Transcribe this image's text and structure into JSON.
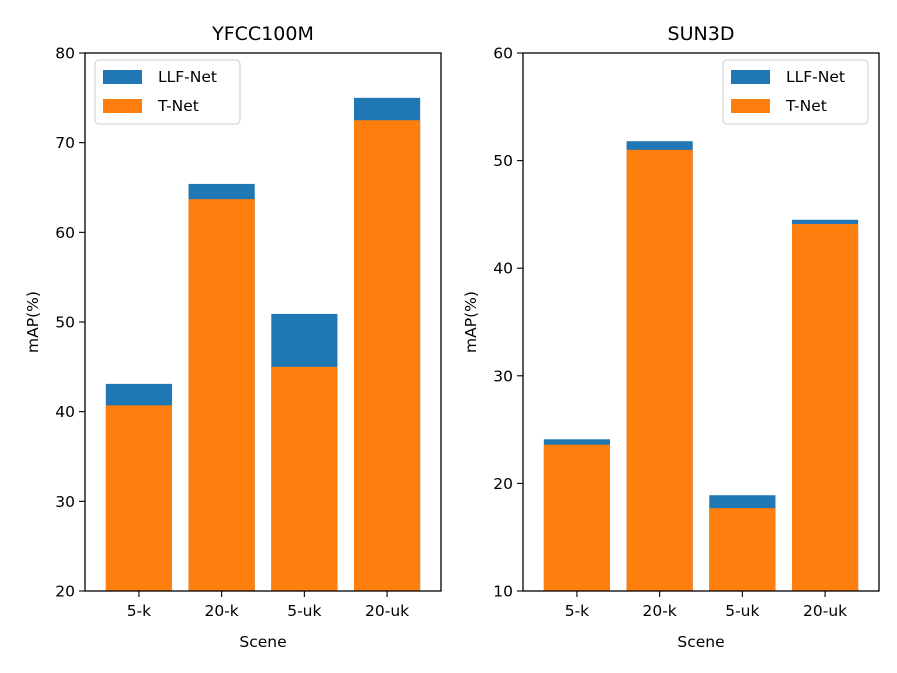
{
  "chart_data": [
    {
      "type": "bar",
      "stacking": "overlay",
      "title": "YFCC100M",
      "xlabel": "Scene",
      "ylabel": "mAP(%)",
      "categories": [
        "5-k",
        "20-k",
        "5-uk",
        "20-uk"
      ],
      "ylim": [
        20,
        80
      ],
      "yticks": [
        20,
        30,
        40,
        50,
        60,
        70,
        80
      ],
      "legend_position": "top-left",
      "series": [
        {
          "name": "LLF-Net",
          "color": "#1f77b4",
          "values": [
            43.1,
            65.4,
            50.9,
            75.0
          ]
        },
        {
          "name": "T-Net",
          "color": "#ff7f0e",
          "values": [
            40.7,
            63.7,
            45.0,
            72.5
          ]
        }
      ]
    },
    {
      "type": "bar",
      "stacking": "overlay",
      "title": "SUN3D",
      "xlabel": "Scene",
      "ylabel": "mAP(%)",
      "categories": [
        "5-k",
        "20-k",
        "5-uk",
        "20-uk"
      ],
      "ylim": [
        10,
        60
      ],
      "yticks": [
        10,
        20,
        30,
        40,
        50,
        60
      ],
      "legend_position": "top-right",
      "series": [
        {
          "name": "LLF-Net",
          "color": "#1f77b4",
          "values": [
            24.1,
            51.8,
            18.9,
            44.5
          ]
        },
        {
          "name": "T-Net",
          "color": "#ff7f0e",
          "values": [
            23.6,
            51.0,
            17.7,
            44.1
          ]
        }
      ]
    }
  ]
}
